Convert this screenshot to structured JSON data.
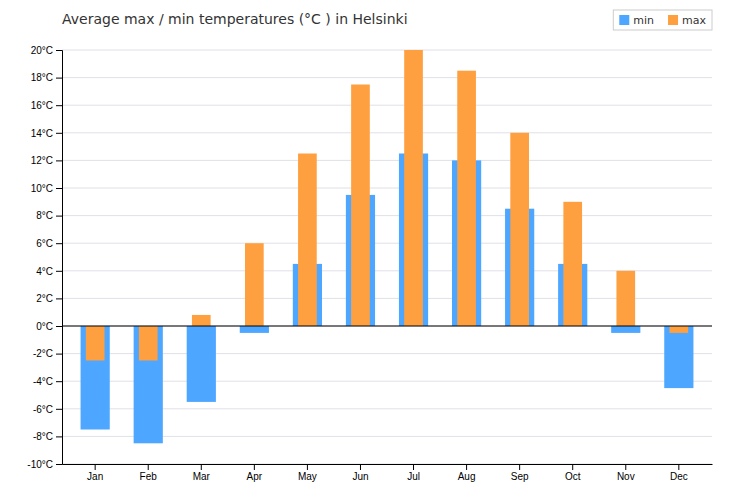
{
  "chart_data": {
    "type": "bar",
    "title": "Average max / min temperatures (°C ) in Helsinki",
    "categories": [
      "Jan",
      "Feb",
      "Mar",
      "Apr",
      "May",
      "Jun",
      "Jul",
      "Aug",
      "Sep",
      "Oct",
      "Nov",
      "Dec"
    ],
    "series": [
      {
        "name": "min",
        "color": "#4da6ff",
        "values": [
          -7.5,
          -8.5,
          -5.5,
          -0.5,
          4.5,
          9.5,
          12.5,
          12.0,
          8.5,
          4.5,
          -0.5,
          -4.5
        ]
      },
      {
        "name": "max",
        "color": "#ffa040",
        "values": [
          -2.5,
          -2.5,
          0.8,
          6.0,
          12.5,
          17.5,
          20.0,
          18.5,
          14.0,
          9.0,
          4.0,
          -0.5
        ]
      }
    ],
    "ylim": [
      -10,
      20
    ],
    "yticks": [
      {
        "value": -10,
        "label": "-10°C"
      },
      {
        "value": -8,
        "label": "-8°C"
      },
      {
        "value": -6,
        "label": "-6°C"
      },
      {
        "value": -4,
        "label": "-4°C"
      },
      {
        "value": -2,
        "label": "-2°C"
      },
      {
        "value": 0,
        "label": "0°C"
      },
      {
        "value": 2,
        "label": "2°C"
      },
      {
        "value": 4,
        "label": "4°C"
      },
      {
        "value": 6,
        "label": "6°C"
      },
      {
        "value": 8,
        "label": "8°C"
      },
      {
        "value": 10,
        "label": "10°C"
      },
      {
        "value": 12,
        "label": "12°C"
      },
      {
        "value": 14,
        "label": "14°C"
      },
      {
        "value": 16,
        "label": "16°C"
      },
      {
        "value": 18,
        "label": "18°C"
      },
      {
        "value": 20,
        "label": "20°C"
      }
    ],
    "grid": true,
    "legend": "upper right"
  }
}
